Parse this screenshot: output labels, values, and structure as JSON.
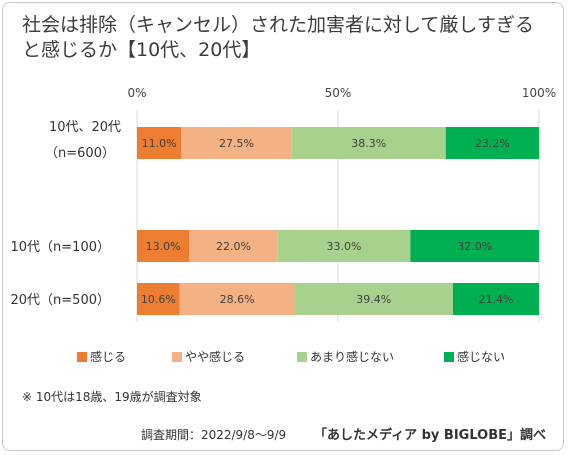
{
  "title_line1": "社会は排除（キャンセル）された加害者に対して厳しすぎる",
  "title_line2": "と感じるか【10代、20代】",
  "note": "※ 10代は18歳、19歳が調査対象",
  "survey_period": "調査期間：2022/9/8～9/9",
  "source": "「あしたメディア by BIGLOBE」調べ",
  "chart_data": {
    "type": "bar",
    "orientation": "horizontal",
    "stacked": "percent",
    "x_ticks": [
      "0%",
      "50%",
      "100%"
    ],
    "xlim": [
      0,
      100
    ],
    "categories": [
      {
        "line1": "10代、20代",
        "line2": "（n=600）"
      },
      {
        "line1": "10代（n=100）",
        "line2": ""
      },
      {
        "line1": "20代（n=500）",
        "line2": ""
      }
    ],
    "series": [
      {
        "name": "感じる",
        "color": "#ed7d31",
        "values": [
          11.0,
          13.0,
          10.6
        ]
      },
      {
        "name": "やや感じる",
        "color": "#f4b183",
        "values": [
          27.5,
          22.0,
          28.6
        ]
      },
      {
        "name": "あまり感じない",
        "color": "#a9d18e",
        "values": [
          38.3,
          33.0,
          39.4
        ]
      },
      {
        "name": "感じない",
        "color": "#00b050",
        "values": [
          23.2,
          32.0,
          21.4
        ]
      }
    ],
    "legend_position": "bottom"
  }
}
